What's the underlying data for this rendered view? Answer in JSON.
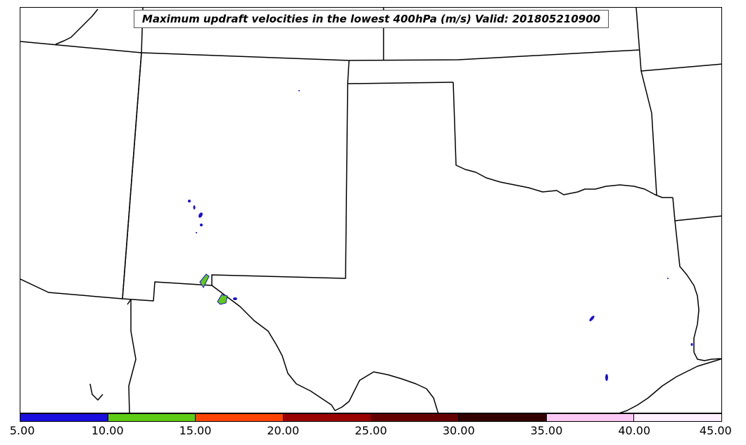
{
  "title": "Maximum updraft velocities in the lowest 400hPa (m/s) Valid: 201805210900",
  "colorbar": {
    "colors": [
      "#1a0de0",
      "#5fcc14",
      "#ff4400",
      "#990000",
      "#660000",
      "#330000",
      "#ffc8f5",
      "#fff0ff"
    ],
    "tick_labels": [
      "5.00",
      "10.00",
      "15.00",
      "20.00",
      "25.00",
      "30.00",
      "35.00",
      "40.00",
      "45.00"
    ]
  },
  "map": {
    "region": "Southern Plains, USA (Texas, Oklahoma, New Mexico, Kansas, Colorado)",
    "border_color": "#000000",
    "updraft_colors": {
      "low": "#1a0de0",
      "mid": "#5fcc14"
    }
  }
}
